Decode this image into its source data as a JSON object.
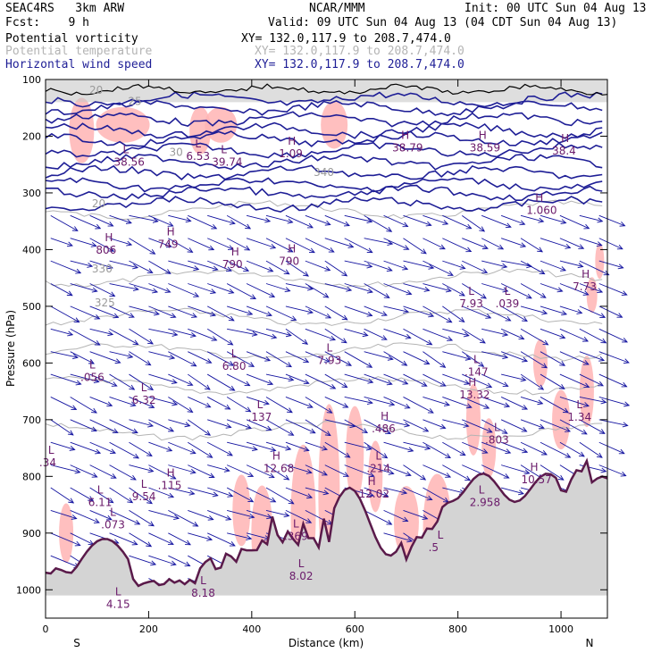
{
  "header": {
    "model": "SEAC4RS   3km ARW",
    "org": "NCAR/MMM",
    "init": "Init: 00 UTC Sun 04 Aug 13",
    "fcst": "Fcst:    9 h",
    "valid": "Valid: 09 UTC Sun 04 Aug 13 (04 CDT Sun 04 Aug 13)",
    "fields": [
      {
        "name": "Potential vorticity",
        "xy": "XY= 132.0,117.9 to 208.7,474.0",
        "color": "#000000"
      },
      {
        "name": "Potential temperature",
        "xy": "XY= 132.0,117.9 to 208.7,474.0",
        "color": "#b4b4b4"
      },
      {
        "name": "Horizontal wind speed",
        "xy": "XY= 132.0,117.9 to 208.7,474.0",
        "color": "#1e1e96"
      }
    ]
  },
  "chart_data": {
    "type": "cross-section",
    "xlabel": "Distance (km)",
    "ylabel": "Pressure (hPa)",
    "xlim": [
      0,
      1090
    ],
    "ylim": [
      1050,
      100
    ],
    "x_ticks": [
      0,
      200,
      400,
      600,
      800,
      1000
    ],
    "y_ticks": [
      100,
      200,
      300,
      400,
      500,
      600,
      700,
      800,
      900,
      1000
    ],
    "x_end_labels": {
      "left": "S",
      "right": "N"
    },
    "colors": {
      "pv": "#000000",
      "theta": "#b4b4b4",
      "wind": "#1e1e96",
      "terrain": "#5a1a4a",
      "shade": "#ffb4b4",
      "vector": "#1414a0"
    },
    "highs_lows": [
      {
        "type": "H",
        "value": "806",
        "x": 115,
        "p": 385
      },
      {
        "type": "H",
        "value": "749",
        "x": 235,
        "p": 375
      },
      {
        "type": "H",
        "value": "790",
        "x": 360,
        "p": 410
      },
      {
        "type": "H",
        "value": "790",
        "x": 470,
        "p": 405
      },
      {
        "type": "L",
        "value": "7.93",
        "x": 820,
        "p": 480
      },
      {
        "type": "L",
        "value": ".039",
        "x": 890,
        "p": 480
      },
      {
        "type": "H",
        "value": "7.73",
        "x": 1040,
        "p": 450
      },
      {
        "type": "L",
        "value": ".056",
        "x": 85,
        "p": 610
      },
      {
        "type": "L",
        "value": "6.32",
        "x": 185,
        "p": 650
      },
      {
        "type": "L",
        "value": "6.80",
        "x": 360,
        "p": 590
      },
      {
        "type": "L",
        "value": "7.93",
        "x": 545,
        "p": 580
      },
      {
        "type": "L",
        "value": ".147",
        "x": 830,
        "p": 600
      },
      {
        "type": "H",
        "value": "13.32",
        "x": 820,
        "p": 640
      },
      {
        "type": "L",
        "value": ".137",
        "x": 410,
        "p": 680
      },
      {
        "type": "H",
        "value": ".486",
        "x": 650,
        "p": 700
      },
      {
        "type": "L",
        "value": ".803",
        "x": 870,
        "p": 720
      },
      {
        "type": "L",
        "value": "1.34",
        "x": 1030,
        "p": 680
      },
      {
        "type": "H",
        "value": "12.68",
        "x": 440,
        "p": 770
      },
      {
        "type": "L",
        "value": ".214",
        "x": 640,
        "p": 770
      },
      {
        "type": "L",
        "value": ".34",
        "x": 5,
        "p": 760
      },
      {
        "type": "H",
        "value": "10.57",
        "x": 940,
        "p": 790
      },
      {
        "type": "H",
        "value": ".115",
        "x": 235,
        "p": 800
      },
      {
        "type": "L",
        "value": "9.54",
        "x": 185,
        "p": 820
      },
      {
        "type": "H",
        "value": "12.02",
        "x": 625,
        "p": 815
      },
      {
        "type": "L",
        "value": "6.11",
        "x": 100,
        "p": 830
      },
      {
        "type": "L",
        "value": "2.958",
        "x": 840,
        "p": 830
      },
      {
        "type": "L",
        "value": ".073",
        "x": 125,
        "p": 870
      },
      {
        "type": "L",
        "value": ".369",
        "x": 480,
        "p": 890
      },
      {
        "type": "L",
        "value": ".5",
        "x": 760,
        "p": 910
      },
      {
        "type": "L",
        "value": "8.02",
        "x": 490,
        "p": 960
      },
      {
        "type": "L",
        "value": "8.18",
        "x": 300,
        "p": 990
      },
      {
        "type": "L",
        "value": "4.15",
        "x": 135,
        "p": 1010
      },
      {
        "type": "L",
        "value": "38.56",
        "x": 150,
        "p": 230
      },
      {
        "type": "L",
        "value": "6.53",
        "x": 290,
        "p": 220
      },
      {
        "type": "L",
        "value": "39.74",
        "x": 340,
        "p": 230
      },
      {
        "type": "H",
        "value": "1.09",
        "x": 470,
        "p": 215
      },
      {
        "type": "H",
        "value": "38.79",
        "x": 690,
        "p": 205
      },
      {
        "type": "H",
        "value": "38.59",
        "x": 840,
        "p": 205
      },
      {
        "type": "H",
        "value": "38.4",
        "x": 1000,
        "p": 210
      },
      {
        "type": "H",
        "value": "1.060",
        "x": 950,
        "p": 315
      }
    ],
    "theta_labels": [
      {
        "value": "20",
        "x": 85,
        "p": 125
      },
      {
        "value": "25",
        "x": 160,
        "p": 145
      },
      {
        "value": "30",
        "x": 240,
        "p": 235
      },
      {
        "value": "20",
        "x": 90,
        "p": 325
      },
      {
        "value": "340",
        "x": 520,
        "p": 270
      },
      {
        "value": "325",
        "x": 95,
        "p": 500
      },
      {
        "value": "330",
        "x": 90,
        "p": 440
      }
    ]
  }
}
